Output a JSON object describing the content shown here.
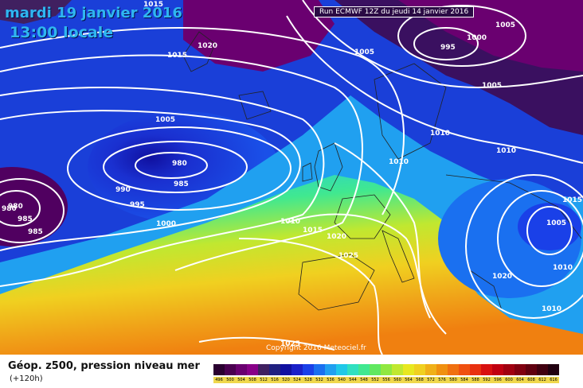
{
  "header": {
    "valid_date": "mardi 19 janvier 2016",
    "local_time": "13:00 locale",
    "run": "Run ECMWF 12Z du jeudi 14 janvier 2016"
  },
  "map": {
    "copyright": "Copyright 2016 Meteociel.fr",
    "pressure_labels": [
      "1015",
      "1020",
      "1015",
      "1005",
      "1005",
      "995",
      "1000",
      "1005",
      "1005",
      "1010",
      "1010",
      "1010",
      "980",
      "985",
      "990",
      "995",
      "1000",
      "980",
      "980",
      "985",
      "985",
      "1010",
      "1015",
      "1020",
      "1025",
      "1025",
      "1015",
      "1005",
      "1010",
      "1020",
      "1010"
    ]
  },
  "footer": {
    "title": "Géop. z500, pression niveau mer",
    "forecast_hour": "(+120h)",
    "scale_labels": [
      "496",
      "500",
      "504",
      "508",
      "512",
      "516",
      "520",
      "524",
      "528",
      "532",
      "536",
      "540",
      "544",
      "548",
      "552",
      "556",
      "560",
      "564",
      "568",
      "572",
      "576",
      "580",
      "584",
      "588",
      "592",
      "596",
      "600",
      "604",
      "608",
      "612",
      "616"
    ],
    "scale_colors": [
      "#2a0030",
      "#4a0050",
      "#6a0070",
      "#880088",
      "#402060",
      "#202080",
      "#1010a0",
      "#1a20c8",
      "#1a40e8",
      "#1a70f0",
      "#20a0f0",
      "#20c8e8",
      "#30e0c0",
      "#40e890",
      "#60e860",
      "#90e840",
      "#c0e830",
      "#e8e820",
      "#f0d020",
      "#f0b018",
      "#f09010",
      "#f07010",
      "#f05010",
      "#e83010",
      "#d81010",
      "#c00010",
      "#a00010",
      "#800010",
      "#600010",
      "#400010",
      "#200010"
    ]
  }
}
